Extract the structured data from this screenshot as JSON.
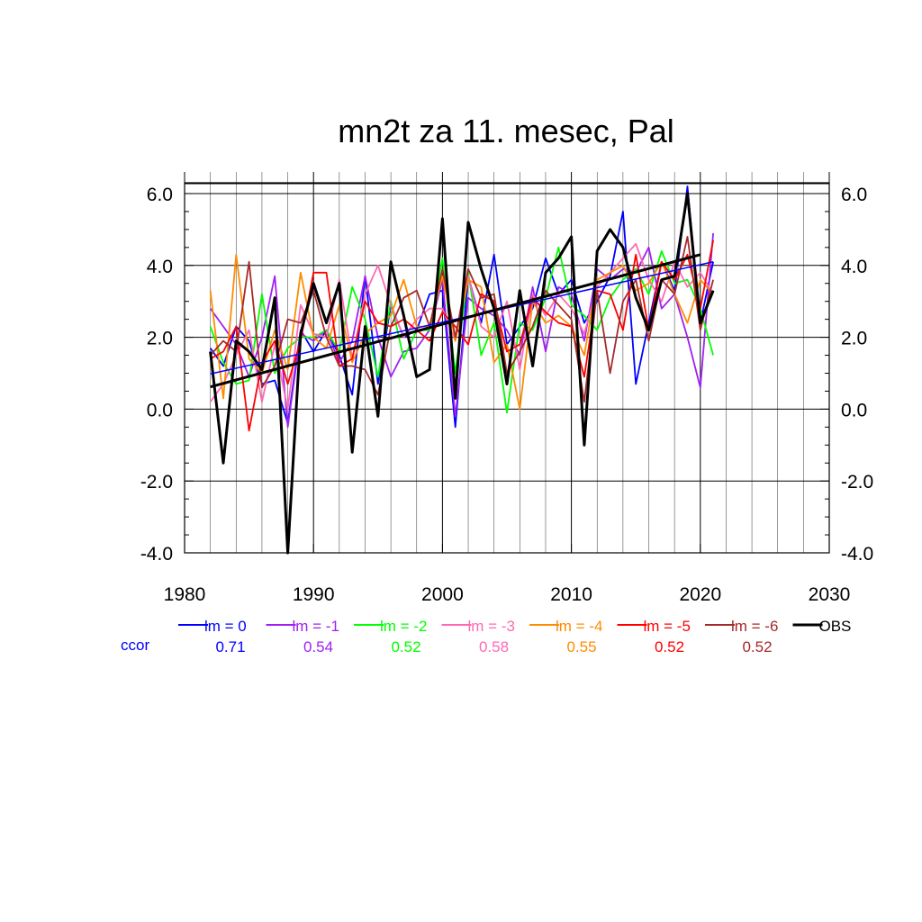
{
  "chart_data": {
    "type": "line",
    "title": "mn2t za 11. mesec, Pal",
    "xlabel": "",
    "ylabel": "",
    "xlim": [
      1980,
      2030
    ],
    "ylim": [
      -4.0,
      6.3
    ],
    "x_ticks": [
      1980,
      1990,
      2000,
      2010,
      2020,
      2030
    ],
    "x_tick_labels": [
      "1980",
      "1990",
      "2000",
      "2010",
      "2020",
      "2030"
    ],
    "y_ticks": [
      -4.0,
      -2.0,
      0.0,
      2.0,
      4.0,
      6.0
    ],
    "y_tick_labels": [
      "-4.0",
      "-2.0",
      "0.0",
      "2.0",
      "4.0",
      "6.0"
    ],
    "grid": true,
    "legend_position": "bottom",
    "ccor_label": "ccor",
    "series": [
      {
        "name": "lm = 0",
        "color": "#0000ff",
        "ccor": "0.71",
        "x": [
          1982,
          1983,
          1984,
          1985,
          1986,
          1987,
          1988,
          1989,
          1990,
          1991,
          1992,
          1993,
          1994,
          1995,
          1996,
          1997,
          1998,
          1999,
          2000,
          2001,
          2002,
          2003,
          2004,
          2005,
          2006,
          2007,
          2008,
          2009,
          2010,
          2011,
          2012,
          2013,
          2014,
          2015,
          2016,
          2017,
          2018,
          2019,
          2020,
          2021
        ],
        "y": [
          1.7,
          1.2,
          2.3,
          1.9,
          0.7,
          0.8,
          -0.4,
          2.2,
          1.6,
          2.2,
          1.5,
          0.4,
          3.7,
          0.7,
          2.9,
          2.0,
          2.2,
          3.2,
          3.3,
          -0.5,
          3.7,
          2.4,
          4.3,
          1.8,
          2.3,
          2.8,
          4.2,
          3.2,
          3.6,
          2.4,
          3.0,
          3.7,
          5.5,
          0.7,
          2.4,
          4.1,
          3.3,
          6.2,
          2.4,
          4.1
        ],
        "trend": [
          [
            1982,
            0.98
          ],
          [
            2021,
            4.1
          ]
        ]
      },
      {
        "name": "lm = -1",
        "color": "#a020f0",
        "ccor": "0.54",
        "x": [
          1982,
          1983,
          1984,
          1985,
          1986,
          1987,
          1988,
          1989,
          1990,
          1991,
          1992,
          1993,
          1994,
          1995,
          1996,
          1997,
          1998,
          1999,
          2000,
          2001,
          2002,
          2003,
          2004,
          2005,
          2006,
          2007,
          2008,
          2009,
          2010,
          2011,
          2012,
          2013,
          2014,
          2015,
          2016,
          2017,
          2018,
          2019,
          2020,
          2021
        ],
        "y": [
          2.8,
          2.3,
          1.8,
          0.9,
          2.0,
          3.7,
          -0.5,
          2.1,
          1.9,
          2.2,
          1.3,
          1.9,
          3.7,
          2.0,
          0.9,
          1.6,
          1.7,
          2.2,
          3.6,
          -0.2,
          3.1,
          2.8,
          2.6,
          2.2,
          1.5,
          3.4,
          1.6,
          3.4,
          3.2,
          1.9,
          3.9,
          3.6,
          3.9,
          3.8,
          4.5,
          2.8,
          3.2,
          2.0,
          0.6,
          4.9
        ]
      },
      {
        "name": "lm = -2",
        "color": "#00ff00",
        "ccor": "0.52",
        "x": [
          1982,
          1983,
          1984,
          1985,
          1986,
          1987,
          1988,
          1989,
          1990,
          1991,
          1992,
          1993,
          1994,
          1995,
          1996,
          1997,
          1998,
          1999,
          2000,
          2001,
          2002,
          2003,
          2004,
          2005,
          2006,
          2007,
          2008,
          2009,
          2010,
          2011,
          2012,
          2013,
          2014,
          2015,
          2016,
          2017,
          2018,
          2019,
          2020,
          2021
        ],
        "y": [
          2.3,
          1.3,
          0.7,
          0.8,
          3.2,
          1.0,
          1.7,
          2.0,
          2.0,
          2.2,
          1.6,
          3.4,
          2.5,
          0.9,
          3.0,
          1.4,
          2.2,
          2.2,
          4.2,
          1.0,
          3.8,
          1.5,
          2.4,
          -0.1,
          2.4,
          2.2,
          3.1,
          4.5,
          2.9,
          2.6,
          2.2,
          3.1,
          3.6,
          3.9,
          3.2,
          4.4,
          3.5,
          3.6,
          2.8,
          1.5
        ]
      },
      {
        "name": "lm = -3",
        "color": "#ff69b4",
        "ccor": "0.58",
        "x": [
          1982,
          1983,
          1984,
          1985,
          1986,
          1987,
          1988,
          1989,
          1990,
          1991,
          1992,
          1993,
          1994,
          1995,
          1996,
          1997,
          1998,
          1999,
          2000,
          2001,
          2002,
          2003,
          2004,
          2005,
          2006,
          2007,
          2008,
          2009,
          2010,
          2011,
          2012,
          2013,
          2014,
          2015,
          2016,
          2017,
          2018,
          2019,
          2020,
          2021
        ],
        "y": [
          0.2,
          0.7,
          1.5,
          2.2,
          0.2,
          1.8,
          0.0,
          2.9,
          2.1,
          2.0,
          3.6,
          1.4,
          3.2,
          4.0,
          2.9,
          2.0,
          2.5,
          2.8,
          2.8,
          1.9,
          3.7,
          2.3,
          2.0,
          3.0,
          1.1,
          3.2,
          2.6,
          3.2,
          2.8,
          2.1,
          3.4,
          3.8,
          4.2,
          4.6,
          3.6,
          3.0,
          4.1,
          3.4,
          3.8,
          3.2
        ]
      },
      {
        "name": "lm = -4",
        "color": "#ff8c00",
        "ccor": "0.55",
        "x": [
          1982,
          1983,
          1984,
          1985,
          1986,
          1987,
          1988,
          1989,
          1990,
          1991,
          1992,
          1993,
          1994,
          1995,
          1996,
          1997,
          1998,
          1999,
          2000,
          2001,
          2002,
          2003,
          2004,
          2005,
          2006,
          2007,
          2008,
          2009,
          2010,
          2011,
          2012,
          2013,
          2014,
          2015,
          2016,
          2017,
          2018,
          2019,
          2020,
          2021
        ],
        "y": [
          3.3,
          0.3,
          4.3,
          1.4,
          1.0,
          2.2,
          1.1,
          3.8,
          2.0,
          1.7,
          2.9,
          1.3,
          2.1,
          2.4,
          2.6,
          3.6,
          2.3,
          2.3,
          3.7,
          1.9,
          3.6,
          3.4,
          1.3,
          1.8,
          0.0,
          3.0,
          2.4,
          2.6,
          2.3,
          1.5,
          3.6,
          3.8,
          4.0,
          3.3,
          3.5,
          4.1,
          3.2,
          2.4,
          3.6,
          3.2
        ]
      },
      {
        "name": "lm = -5",
        "color": "#ff0000",
        "ccor": "0.52",
        "x": [
          1982,
          1983,
          1984,
          1985,
          1986,
          1987,
          1988,
          1989,
          1990,
          1991,
          1992,
          1993,
          1994,
          1995,
          1996,
          1997,
          1998,
          1999,
          2000,
          2001,
          2002,
          2003,
          2004,
          2005,
          2006,
          2007,
          2008,
          2009,
          2010,
          2011,
          2012,
          2013,
          2014,
          2015,
          2016,
          2017,
          2018,
          2019,
          2020,
          2021
        ],
        "y": [
          1.4,
          1.6,
          2.3,
          -0.6,
          1.3,
          1.9,
          0.7,
          1.9,
          3.8,
          3.8,
          1.2,
          1.4,
          3.0,
          2.4,
          2.3,
          2.5,
          2.2,
          1.9,
          2.7,
          2.3,
          1.8,
          3.2,
          3.0,
          1.6,
          1.8,
          3.1,
          2.7,
          2.4,
          2.3,
          0.9,
          3.3,
          3.2,
          2.2,
          4.3,
          2.2,
          4.1,
          3.6,
          4.3,
          2.8,
          4.7
        ]
      },
      {
        "name": "lm = -6",
        "color": "#a52a2a",
        "ccor": "0.52",
        "x": [
          1982,
          1983,
          1984,
          1985,
          1986,
          1987,
          1988,
          1989,
          1990,
          1991,
          1992,
          1993,
          1994,
          1995,
          1996,
          1997,
          1998,
          1999,
          2000,
          2001,
          2002,
          2003,
          2004,
          2005,
          2006,
          2007,
          2008,
          2009,
          2010,
          2011,
          2012,
          2013,
          2014,
          2015,
          2016,
          2017,
          2018,
          2019,
          2020,
          2021
        ],
        "y": [
          1.5,
          1.9,
          1.6,
          4.1,
          0.6,
          1.2,
          2.5,
          2.4,
          3.3,
          2.0,
          1.2,
          1.2,
          1.1,
          0.4,
          2.3,
          3.1,
          3.3,
          2.3,
          3.9,
          2.0,
          3.9,
          3.1,
          3.2,
          1.0,
          1.6,
          2.3,
          3.3,
          2.9,
          2.5,
          0.2,
          3.3,
          1.0,
          3.0,
          3.6,
          1.9,
          3.6,
          3.2,
          4.8,
          2.2,
          3.6
        ]
      },
      {
        "name": "OBS",
        "color": "#000000",
        "ccor": "",
        "x": [
          1982,
          1983,
          1984,
          1985,
          1986,
          1987,
          1988,
          1989,
          1990,
          1991,
          1992,
          1993,
          1994,
          1995,
          1996,
          1997,
          1998,
          1999,
          2000,
          2001,
          2002,
          2003,
          2004,
          2005,
          2006,
          2007,
          2008,
          2009,
          2010,
          2011,
          2012,
          2013,
          2014,
          2015,
          2016,
          2017,
          2018,
          2019,
          2020,
          2021
        ],
        "y": [
          1.6,
          -1.5,
          1.9,
          1.6,
          1.1,
          3.1,
          -4.0,
          2.1,
          3.5,
          2.4,
          3.5,
          -1.2,
          2.3,
          -0.2,
          4.1,
          2.6,
          0.9,
          1.1,
          5.3,
          0.3,
          5.2,
          3.9,
          2.8,
          0.7,
          3.3,
          1.2,
          3.8,
          4.2,
          4.8,
          -1.0,
          4.4,
          5.0,
          4.5,
          3.1,
          2.2,
          3.6,
          3.7,
          6.0,
          2.4,
          3.3
        ],
        "trend": [
          [
            1982,
            0.62
          ],
          [
            2020,
            4.3
          ]
        ]
      }
    ]
  }
}
